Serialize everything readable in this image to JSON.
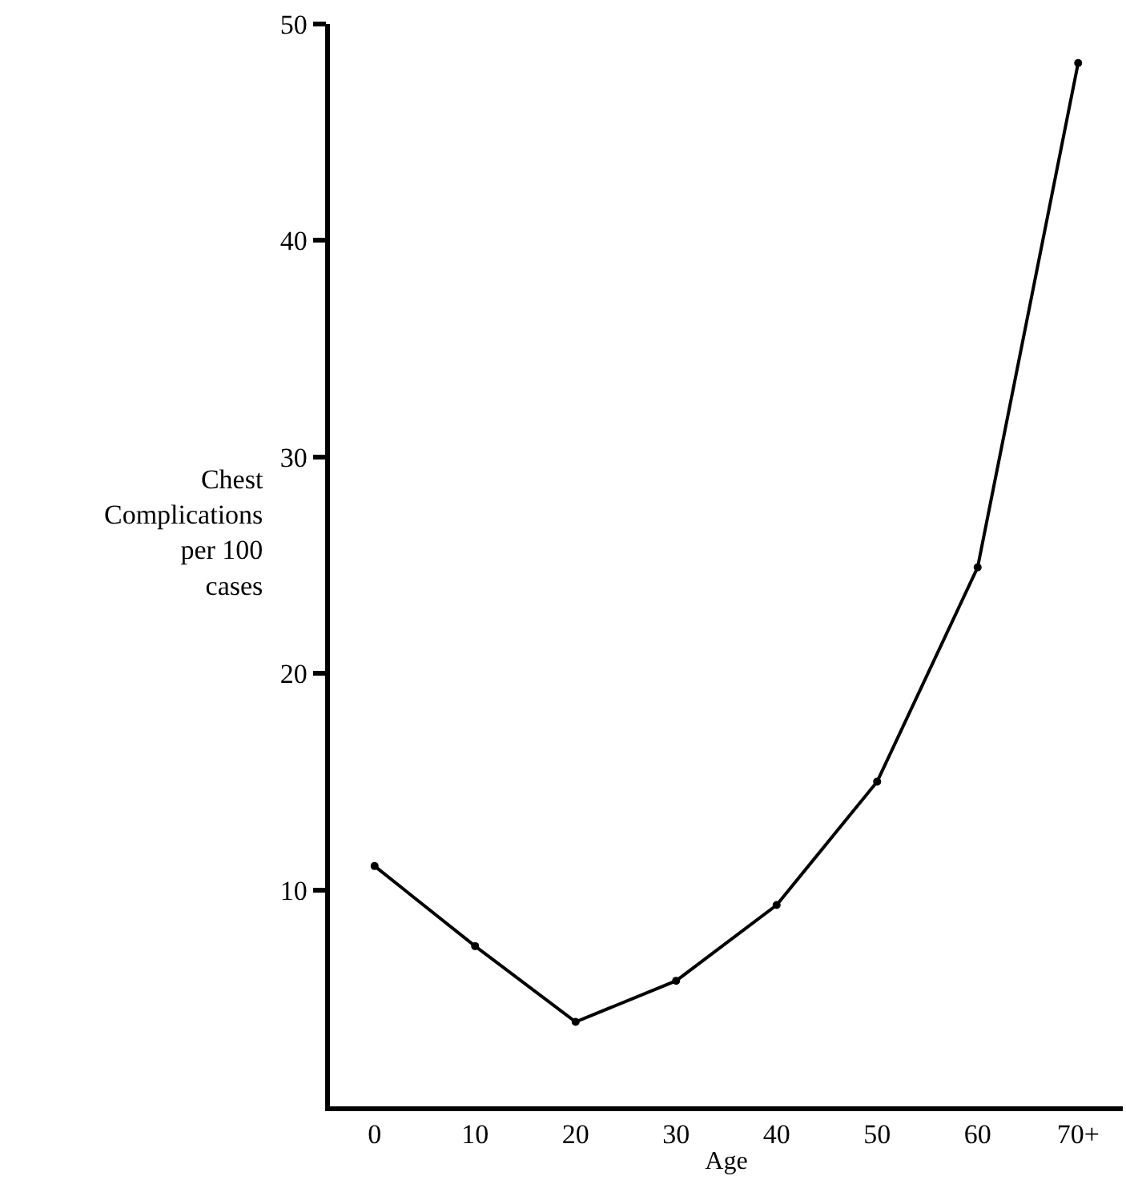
{
  "chart_data": {
    "type": "line",
    "xlabel": "Age",
    "ylabel": "Chest\nComplications\nper 100\ncases",
    "categories": [
      "0",
      "10",
      "20",
      "30",
      "40",
      "50",
      "60",
      "70+"
    ],
    "series": [
      {
        "color": "#000000",
        "values": [
          11.1,
          7.4,
          3.9,
          5.8,
          9.3,
          15.0,
          24.9,
          48.2
        ]
      }
    ],
    "ylim": [
      0,
      50
    ],
    "yticks": [
      10,
      20,
      30,
      40,
      50
    ],
    "marker": "circle",
    "line_style": "solid"
  }
}
